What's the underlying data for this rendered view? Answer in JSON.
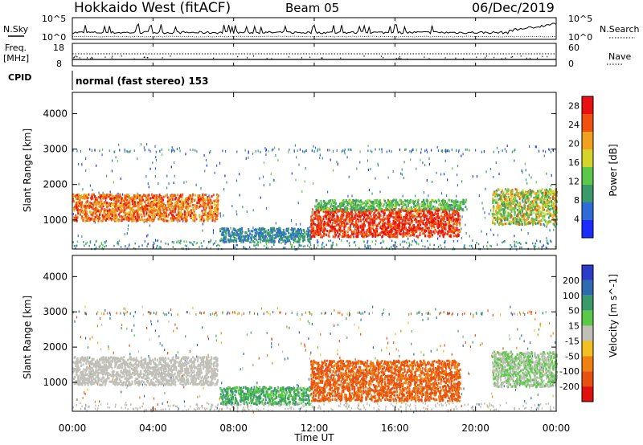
{
  "header": {
    "title": "Hokkaido West (fitACF)",
    "beam": "Beam 05",
    "date": "06/Dec/2019"
  },
  "strips": {
    "nsky_label": "N.Sky",
    "nsearch_label": "N.Search",
    "noise_ticks_left": [
      "10^5",
      "10^0"
    ],
    "noise_ticks_right": [
      "10^5",
      "10^0"
    ],
    "freq_label": "Freq.",
    "freq_unit": "[MHz]",
    "freq_ticks": [
      "18",
      "8"
    ],
    "nave_label": "Nave",
    "nave_ticks": [
      "60",
      "0"
    ],
    "cpid_label": "CPID",
    "cpid_value": "normal (fast stereo) 153"
  },
  "chart_data": [
    {
      "type": "heatmap",
      "name": "power",
      "ylabel": "Slant Range [km]",
      "xlabel": "",
      "x_ticks": [
        "00:00",
        "04:00",
        "08:00",
        "12:00",
        "16:00",
        "20:00",
        "00:00"
      ],
      "x_range_hours": [
        0,
        24
      ],
      "y_ticks": [
        1000,
        2000,
        3000,
        4000
      ],
      "ylim": [
        180,
        4600
      ],
      "colorbar": {
        "label": "Power [dB]",
        "ticks": [
          4,
          8,
          12,
          16,
          20,
          24,
          28
        ],
        "range": [
          0,
          30
        ],
        "colors": [
          "#1a2cff",
          "#2e6bd6",
          "#3a9a6a",
          "#5cc84a",
          "#d4d42a",
          "#f2a020",
          "#f05010",
          "#e81010"
        ]
      },
      "regions": [
        {
          "t0": 0,
          "t1": 7.2,
          "r0": 1000,
          "r1": 1750,
          "v0": 18,
          "v1": 28
        },
        {
          "t0": 7.3,
          "t1": 11.8,
          "r0": 400,
          "r1": 800,
          "v0": 4,
          "v1": 12
        },
        {
          "t0": 11.8,
          "t1": 19.2,
          "r0": 550,
          "r1": 1350,
          "v0": 22,
          "v1": 30
        },
        {
          "t0": 12,
          "t1": 19.5,
          "r0": 1300,
          "r1": 1600,
          "v0": 8,
          "v1": 16
        },
        {
          "t0": 20.8,
          "t1": 24,
          "r0": 900,
          "r1": 1900,
          "v0": 8,
          "v1": 24
        }
      ]
    },
    {
      "type": "heatmap",
      "name": "velocity",
      "ylabel": "Slant Range [km]",
      "xlabel": "Time UT",
      "x_ticks": [
        "00:00",
        "04:00",
        "08:00",
        "12:00",
        "16:00",
        "20:00",
        "00:00"
      ],
      "x_range_hours": [
        0,
        24
      ],
      "y_ticks": [
        1000,
        2000,
        3000,
        4000
      ],
      "ylim": [
        180,
        4600
      ],
      "colorbar": {
        "label": "Velocity [m s^-1]",
        "ticks": [
          200,
          100,
          50,
          15,
          -15,
          -50,
          -100,
          -200
        ],
        "colors": [
          "#2a3cc8",
          "#2e6bb0",
          "#3a9a6a",
          "#5cc84a",
          "#c0c0b8",
          "#f2c020",
          "#f08010",
          "#e85010",
          "#e01010"
        ]
      },
      "regions": [
        {
          "t0": 0,
          "t1": 7.2,
          "r0": 950,
          "r1": 1750,
          "v0": -15,
          "v1": 15
        },
        {
          "t0": 7.3,
          "t1": 11.8,
          "r0": 400,
          "r1": 900,
          "v0": 15,
          "v1": 100
        },
        {
          "t0": 11.8,
          "t1": 19.2,
          "r0": 500,
          "r1": 1650,
          "v0": -200,
          "v1": -50
        },
        {
          "t0": 20.8,
          "t1": 24,
          "r0": 900,
          "r1": 1900,
          "v0": -15,
          "v1": 50
        }
      ]
    }
  ]
}
